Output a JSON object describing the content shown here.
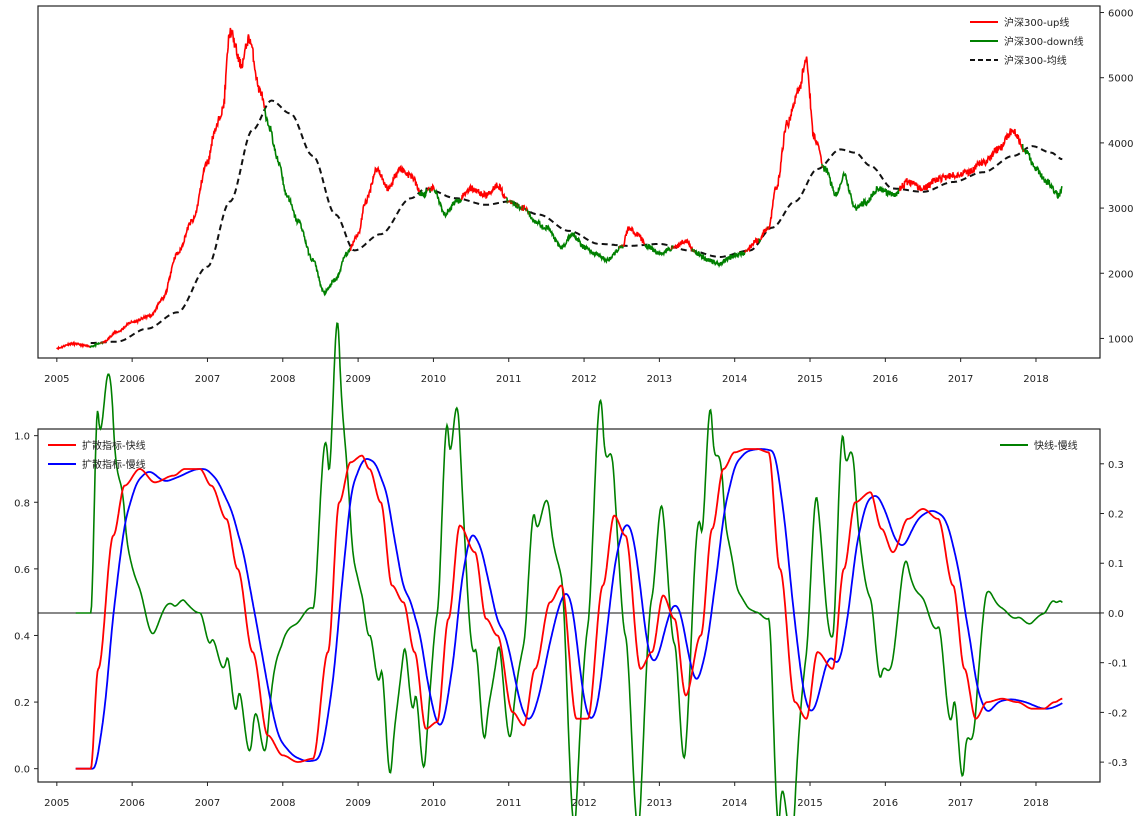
{
  "chart_data": [
    {
      "type": "line",
      "title": "",
      "xlabel": "",
      "ylabel": "",
      "x_ticks": [
        "2005",
        "2006",
        "2007",
        "2008",
        "2009",
        "2010",
        "2011",
        "2012",
        "2013",
        "2014",
        "2015",
        "2016",
        "2017",
        "2018"
      ],
      "xlim": [
        2004.75,
        2018.85
      ],
      "y_axis_side": "right",
      "ylim": [
        700,
        6100
      ],
      "y_ticks": [
        1000,
        2000,
        3000,
        4000,
        5000,
        6000
      ],
      "legend_position": "top-right",
      "grid": false,
      "series": [
        {
          "name": "沪深300-up线",
          "color": "#ff0000",
          "style": "solid",
          "note_segments": "drawn where price is above the average line"
        },
        {
          "name": "沪深300-down线",
          "color": "#008000",
          "style": "solid"
        },
        {
          "name": "沪深300-均线",
          "color": "#111111",
          "style": "dashed"
        }
      ],
      "price": {
        "x": [
          2005.0,
          2005.2,
          2005.45,
          2005.6,
          2005.8,
          2006.0,
          2006.25,
          2006.4,
          2006.6,
          2006.8,
          2007.0,
          2007.1,
          2007.2,
          2007.3,
          2007.45,
          2007.55,
          2007.7,
          2007.8,
          2007.95,
          2008.05,
          2008.2,
          2008.4,
          2008.55,
          2008.7,
          2008.85,
          2009.0,
          2009.1,
          2009.25,
          2009.4,
          2009.55,
          2009.7,
          2009.85,
          2010.0,
          2010.15,
          2010.3,
          2010.5,
          2010.7,
          2010.85,
          2011.0,
          2011.2,
          2011.35,
          2011.5,
          2011.7,
          2011.85,
          2012.0,
          2012.15,
          2012.3,
          2012.5,
          2012.6,
          2012.7,
          2012.85,
          2013.0,
          2013.2,
          2013.35,
          2013.5,
          2013.65,
          2013.8,
          2013.95,
          2014.1,
          2014.3,
          2014.45,
          2014.55,
          2014.7,
          2014.85,
          2014.95,
          2015.05,
          2015.2,
          2015.35,
          2015.45,
          2015.6,
          2015.75,
          2015.9,
          2016.1,
          2016.3,
          2016.5,
          2016.7,
          2016.9,
          2017.1,
          2017.3,
          2017.5,
          2017.7,
          2017.85,
          2018.0,
          2018.15,
          2018.3,
          2018.35
        ],
        "y": [
          850,
          920,
          880,
          930,
          1100,
          1250,
          1350,
          1600,
          2300,
          2800,
          3700,
          4200,
          4500,
          5700,
          5200,
          5600,
          4800,
          4300,
          3700,
          3200,
          2800,
          2200,
          1700,
          1900,
          2300,
          2600,
          3100,
          3600,
          3300,
          3600,
          3500,
          3200,
          3300,
          2900,
          3100,
          3300,
          3200,
          3350,
          3100,
          3000,
          2800,
          2700,
          2400,
          2600,
          2400,
          2300,
          2200,
          2400,
          2700,
          2600,
          2400,
          2300,
          2400,
          2500,
          2300,
          2200,
          2150,
          2250,
          2300,
          2500,
          2700,
          3300,
          4300,
          4800,
          5300,
          4100,
          3600,
          3200,
          3500,
          3000,
          3100,
          3300,
          3200,
          3400,
          3300,
          3450,
          3500,
          3550,
          3700,
          3900,
          4200,
          3900,
          3600,
          3400,
          3200,
          3300
        ]
      },
      "moving_average": {
        "x": [
          2005.45,
          2005.8,
          2006.2,
          2006.6,
          2007.0,
          2007.3,
          2007.6,
          2007.85,
          2008.1,
          2008.4,
          2008.7,
          2008.95,
          2009.3,
          2009.7,
          2009.9,
          2010.3,
          2010.7,
          2011.0,
          2011.4,
          2011.8,
          2012.2,
          2012.6,
          2013.0,
          2013.4,
          2013.8,
          2014.2,
          2014.5,
          2014.8,
          2015.1,
          2015.4,
          2015.6,
          2015.8,
          2016.1,
          2016.5,
          2016.9,
          2017.3,
          2017.7,
          2017.95,
          2018.2,
          2018.35
        ],
        "y": [
          930,
          950,
          1150,
          1400,
          2100,
          3100,
          4200,
          4650,
          4450,
          3800,
          2900,
          2350,
          2600,
          3150,
          3300,
          3150,
          3050,
          3100,
          2900,
          2650,
          2450,
          2420,
          2450,
          2350,
          2250,
          2350,
          2700,
          3100,
          3600,
          3900,
          3850,
          3650,
          3300,
          3250,
          3400,
          3550,
          3800,
          3950,
          3850,
          3750
        ]
      }
    },
    {
      "type": "line",
      "title": "",
      "xlabel": "",
      "ylabel": "",
      "x_ticks": [
        "2005",
        "2006",
        "2007",
        "2008",
        "2009",
        "2010",
        "2011",
        "2012",
        "2013",
        "2014",
        "2015",
        "2016",
        "2017",
        "2018"
      ],
      "xlim": [
        2004.75,
        2018.85
      ],
      "left_axis": {
        "ylim": [
          -0.04,
          1.02
        ],
        "ticks": [
          0.0,
          0.2,
          0.4,
          0.6,
          0.8,
          1.0
        ]
      },
      "right_axis": {
        "ylim": [
          -0.34,
          0.37
        ],
        "ticks": [
          -0.3,
          -0.2,
          -0.1,
          0.0,
          0.1,
          0.2,
          0.3
        ]
      },
      "zero_line": 0.0,
      "legend_left": {
        "position": "upper-left",
        "entries": [
          "扩散指标-快线",
          "扩散指标-慢线"
        ]
      },
      "legend_right": {
        "position": "upper-right",
        "entries": [
          "快线-慢线"
        ]
      },
      "grid": false,
      "series": [
        {
          "name": "扩散指标-快线",
          "axis": "left",
          "color": "#ff0000",
          "x": [
            2005.25,
            2005.45,
            2005.55,
            2005.75,
            2005.9,
            2006.1,
            2006.3,
            2006.55,
            2006.7,
            2006.9,
            2007.05,
            2007.25,
            2007.4,
            2007.6,
            2007.8,
            2008.0,
            2008.2,
            2008.4,
            2008.6,
            2008.75,
            2008.9,
            2009.05,
            2009.15,
            2009.3,
            2009.45,
            2009.6,
            2009.75,
            2009.9,
            2010.05,
            2010.2,
            2010.35,
            2010.55,
            2010.7,
            2010.85,
            2011.05,
            2011.2,
            2011.35,
            2011.55,
            2011.7,
            2011.9,
            2012.05,
            2012.25,
            2012.4,
            2012.55,
            2012.75,
            2012.9,
            2013.05,
            2013.2,
            2013.35,
            2013.55,
            2013.7,
            2013.85,
            2014.0,
            2014.15,
            2014.3,
            2014.45,
            2014.6,
            2014.8,
            2014.95,
            2015.1,
            2015.3,
            2015.45,
            2015.6,
            2015.8,
            2015.95,
            2016.1,
            2016.3,
            2016.5,
            2016.7,
            2016.9,
            2017.05,
            2017.2,
            2017.35,
            2017.55,
            2017.75,
            2017.95,
            2018.1,
            2018.25,
            2018.35
          ],
          "y": [
            0.0,
            0.0,
            0.3,
            0.7,
            0.85,
            0.9,
            0.86,
            0.88,
            0.9,
            0.9,
            0.85,
            0.75,
            0.6,
            0.35,
            0.1,
            0.04,
            0.02,
            0.03,
            0.35,
            0.8,
            0.92,
            0.94,
            0.9,
            0.8,
            0.55,
            0.5,
            0.35,
            0.12,
            0.14,
            0.45,
            0.73,
            0.65,
            0.45,
            0.4,
            0.17,
            0.13,
            0.3,
            0.5,
            0.55,
            0.15,
            0.15,
            0.55,
            0.76,
            0.7,
            0.3,
            0.35,
            0.52,
            0.45,
            0.22,
            0.4,
            0.72,
            0.9,
            0.95,
            0.96,
            0.96,
            0.95,
            0.6,
            0.2,
            0.15,
            0.35,
            0.3,
            0.6,
            0.8,
            0.83,
            0.72,
            0.65,
            0.75,
            0.78,
            0.75,
            0.55,
            0.3,
            0.15,
            0.2,
            0.21,
            0.2,
            0.18,
            0.18,
            0.2,
            0.21
          ],
          "note": "values approximate"
        },
        {
          "name": "扩散指标-慢线",
          "axis": "left",
          "color": "#0000ff",
          "note": "smoothed, lagged copy of the fast line"
        },
        {
          "name": "快线-慢线",
          "axis": "right",
          "color": "#008000",
          "note": "difference of fast and slow lines"
        }
      ]
    }
  ]
}
